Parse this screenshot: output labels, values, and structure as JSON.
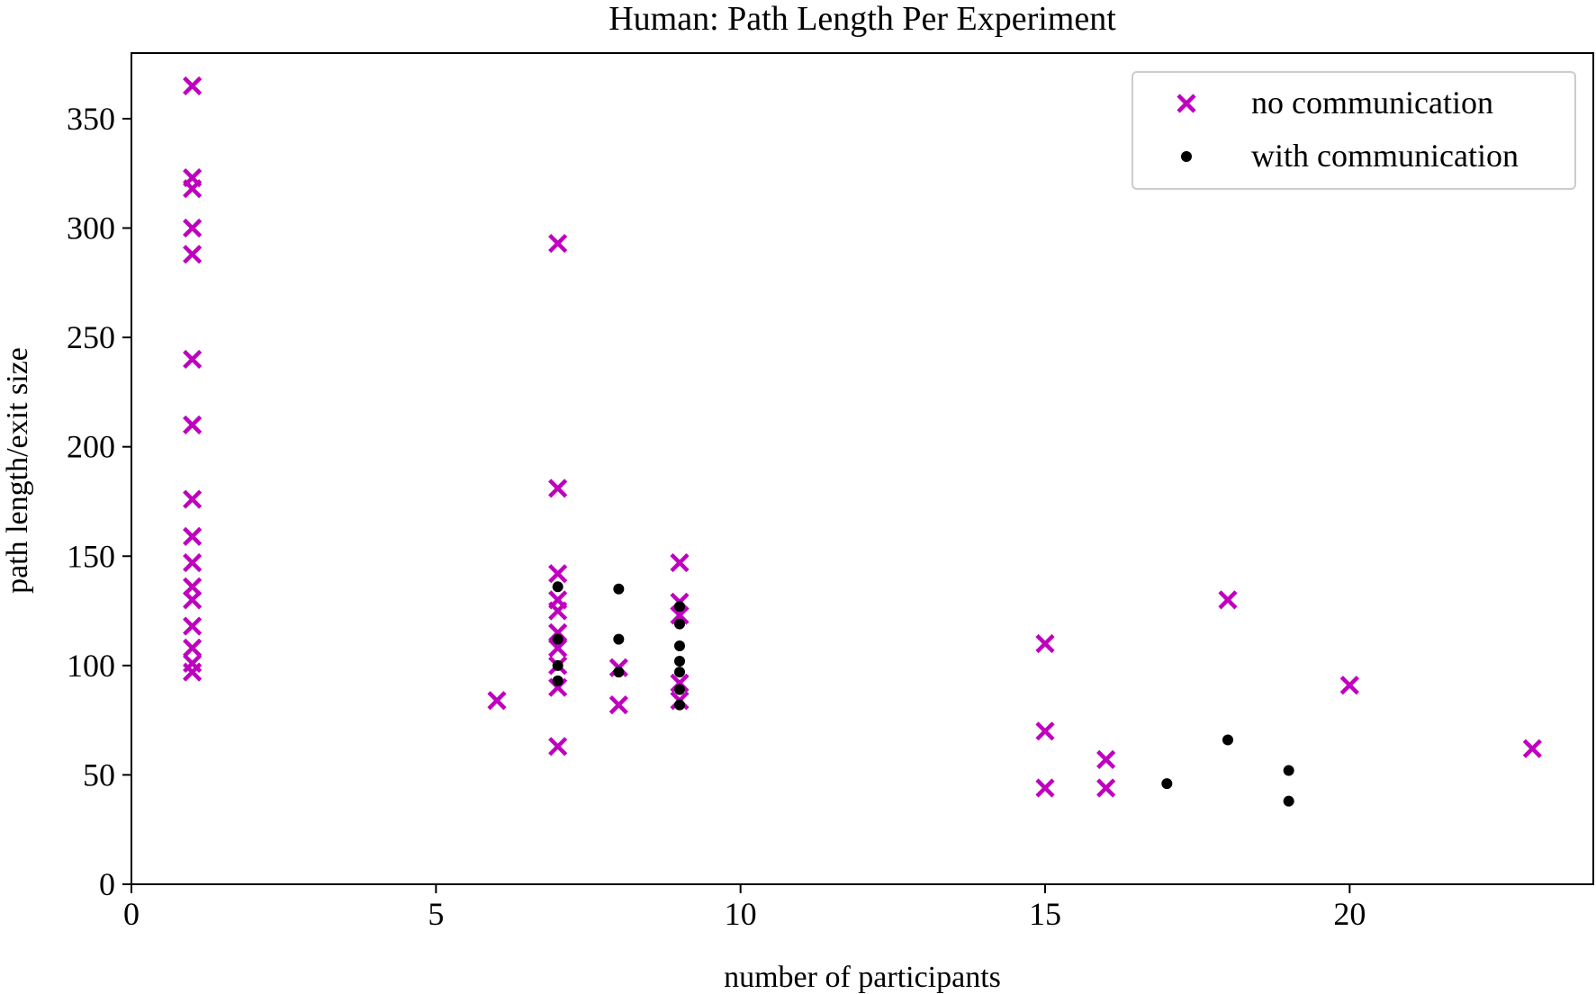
{
  "chart_data": {
    "type": "scatter",
    "title": "Human: Path Length Per Experiment",
    "xlabel": "number of participants",
    "ylabel": "path length/exit size",
    "xlim": [
      0,
      24
    ],
    "ylim": [
      0,
      380
    ],
    "xticks": [
      0,
      5,
      10,
      15,
      20
    ],
    "yticks": [
      0,
      50,
      100,
      150,
      200,
      250,
      300,
      350
    ],
    "grid": false,
    "legend_position": "top-right",
    "series": [
      {
        "name": "no communication",
        "marker": "x",
        "color": "#bf00bf",
        "points": [
          [
            1,
            365
          ],
          [
            1,
            323
          ],
          [
            1,
            318
          ],
          [
            1,
            300
          ],
          [
            1,
            288
          ],
          [
            1,
            240
          ],
          [
            1,
            210
          ],
          [
            1,
            176
          ],
          [
            1,
            159
          ],
          [
            1,
            147
          ],
          [
            1,
            136
          ],
          [
            1,
            130
          ],
          [
            1,
            118
          ],
          [
            1,
            108
          ],
          [
            1,
            101
          ],
          [
            1,
            97
          ],
          [
            6,
            84
          ],
          [
            7,
            293
          ],
          [
            7,
            181
          ],
          [
            7,
            142
          ],
          [
            7,
            130
          ],
          [
            7,
            125
          ],
          [
            7,
            115
          ],
          [
            7,
            108
          ],
          [
            7,
            100
          ],
          [
            7,
            90
          ],
          [
            7,
            63
          ],
          [
            8,
            99
          ],
          [
            8,
            82
          ],
          [
            9,
            147
          ],
          [
            9,
            129
          ],
          [
            9,
            123
          ],
          [
            9,
            92
          ],
          [
            9,
            84
          ],
          [
            15,
            110
          ],
          [
            15,
            70
          ],
          [
            15,
            44
          ],
          [
            16,
            57
          ],
          [
            16,
            44
          ],
          [
            18,
            130
          ],
          [
            20,
            91
          ],
          [
            23,
            62
          ]
        ]
      },
      {
        "name": "with communication",
        "marker": "o",
        "color": "#000000",
        "points": [
          [
            7,
            136
          ],
          [
            7,
            112
          ],
          [
            7,
            100
          ],
          [
            7,
            93
          ],
          [
            8,
            135
          ],
          [
            8,
            112
          ],
          [
            8,
            97
          ],
          [
            9,
            127
          ],
          [
            9,
            119
          ],
          [
            9,
            109
          ],
          [
            9,
            102
          ],
          [
            9,
            97
          ],
          [
            9,
            89
          ],
          [
            9,
            82
          ],
          [
            17,
            46
          ],
          [
            18,
            66
          ],
          [
            19,
            52
          ],
          [
            19,
            38
          ]
        ]
      }
    ]
  }
}
